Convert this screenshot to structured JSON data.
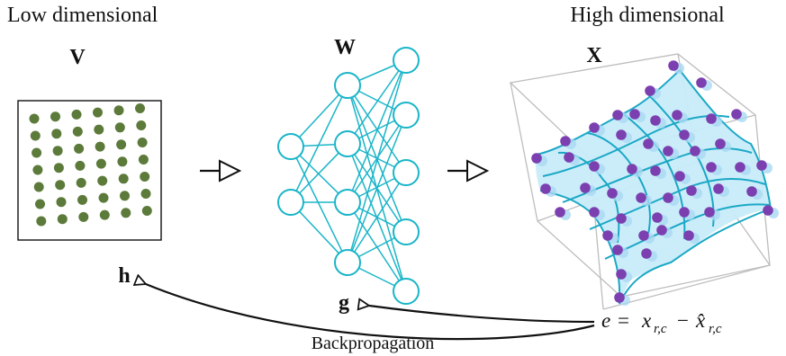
{
  "left": {
    "caption": "Low dimensional",
    "symbol": "V"
  },
  "network": {
    "symbol": "W"
  },
  "right": {
    "caption": "High dimensional",
    "symbol": "X"
  },
  "hidden_grad": {
    "symbol": "h"
  },
  "weight_grad": {
    "symbol": "g"
  },
  "backprop": {
    "label": "Backpropagation"
  },
  "error": {
    "lhs": "e",
    "eq": "=",
    "x": "x",
    "sub": "r,c",
    "minus": "−",
    "xhat": "x̂"
  },
  "colors": {
    "dot_green": "#5c7a3a",
    "network": "#1ab5c8",
    "surface_fill": "#c8ecfa",
    "surface_line": "#1ba8c5",
    "point_purple": "#7b3fb0",
    "box": "#bbbbbb",
    "ink": "#111111"
  }
}
